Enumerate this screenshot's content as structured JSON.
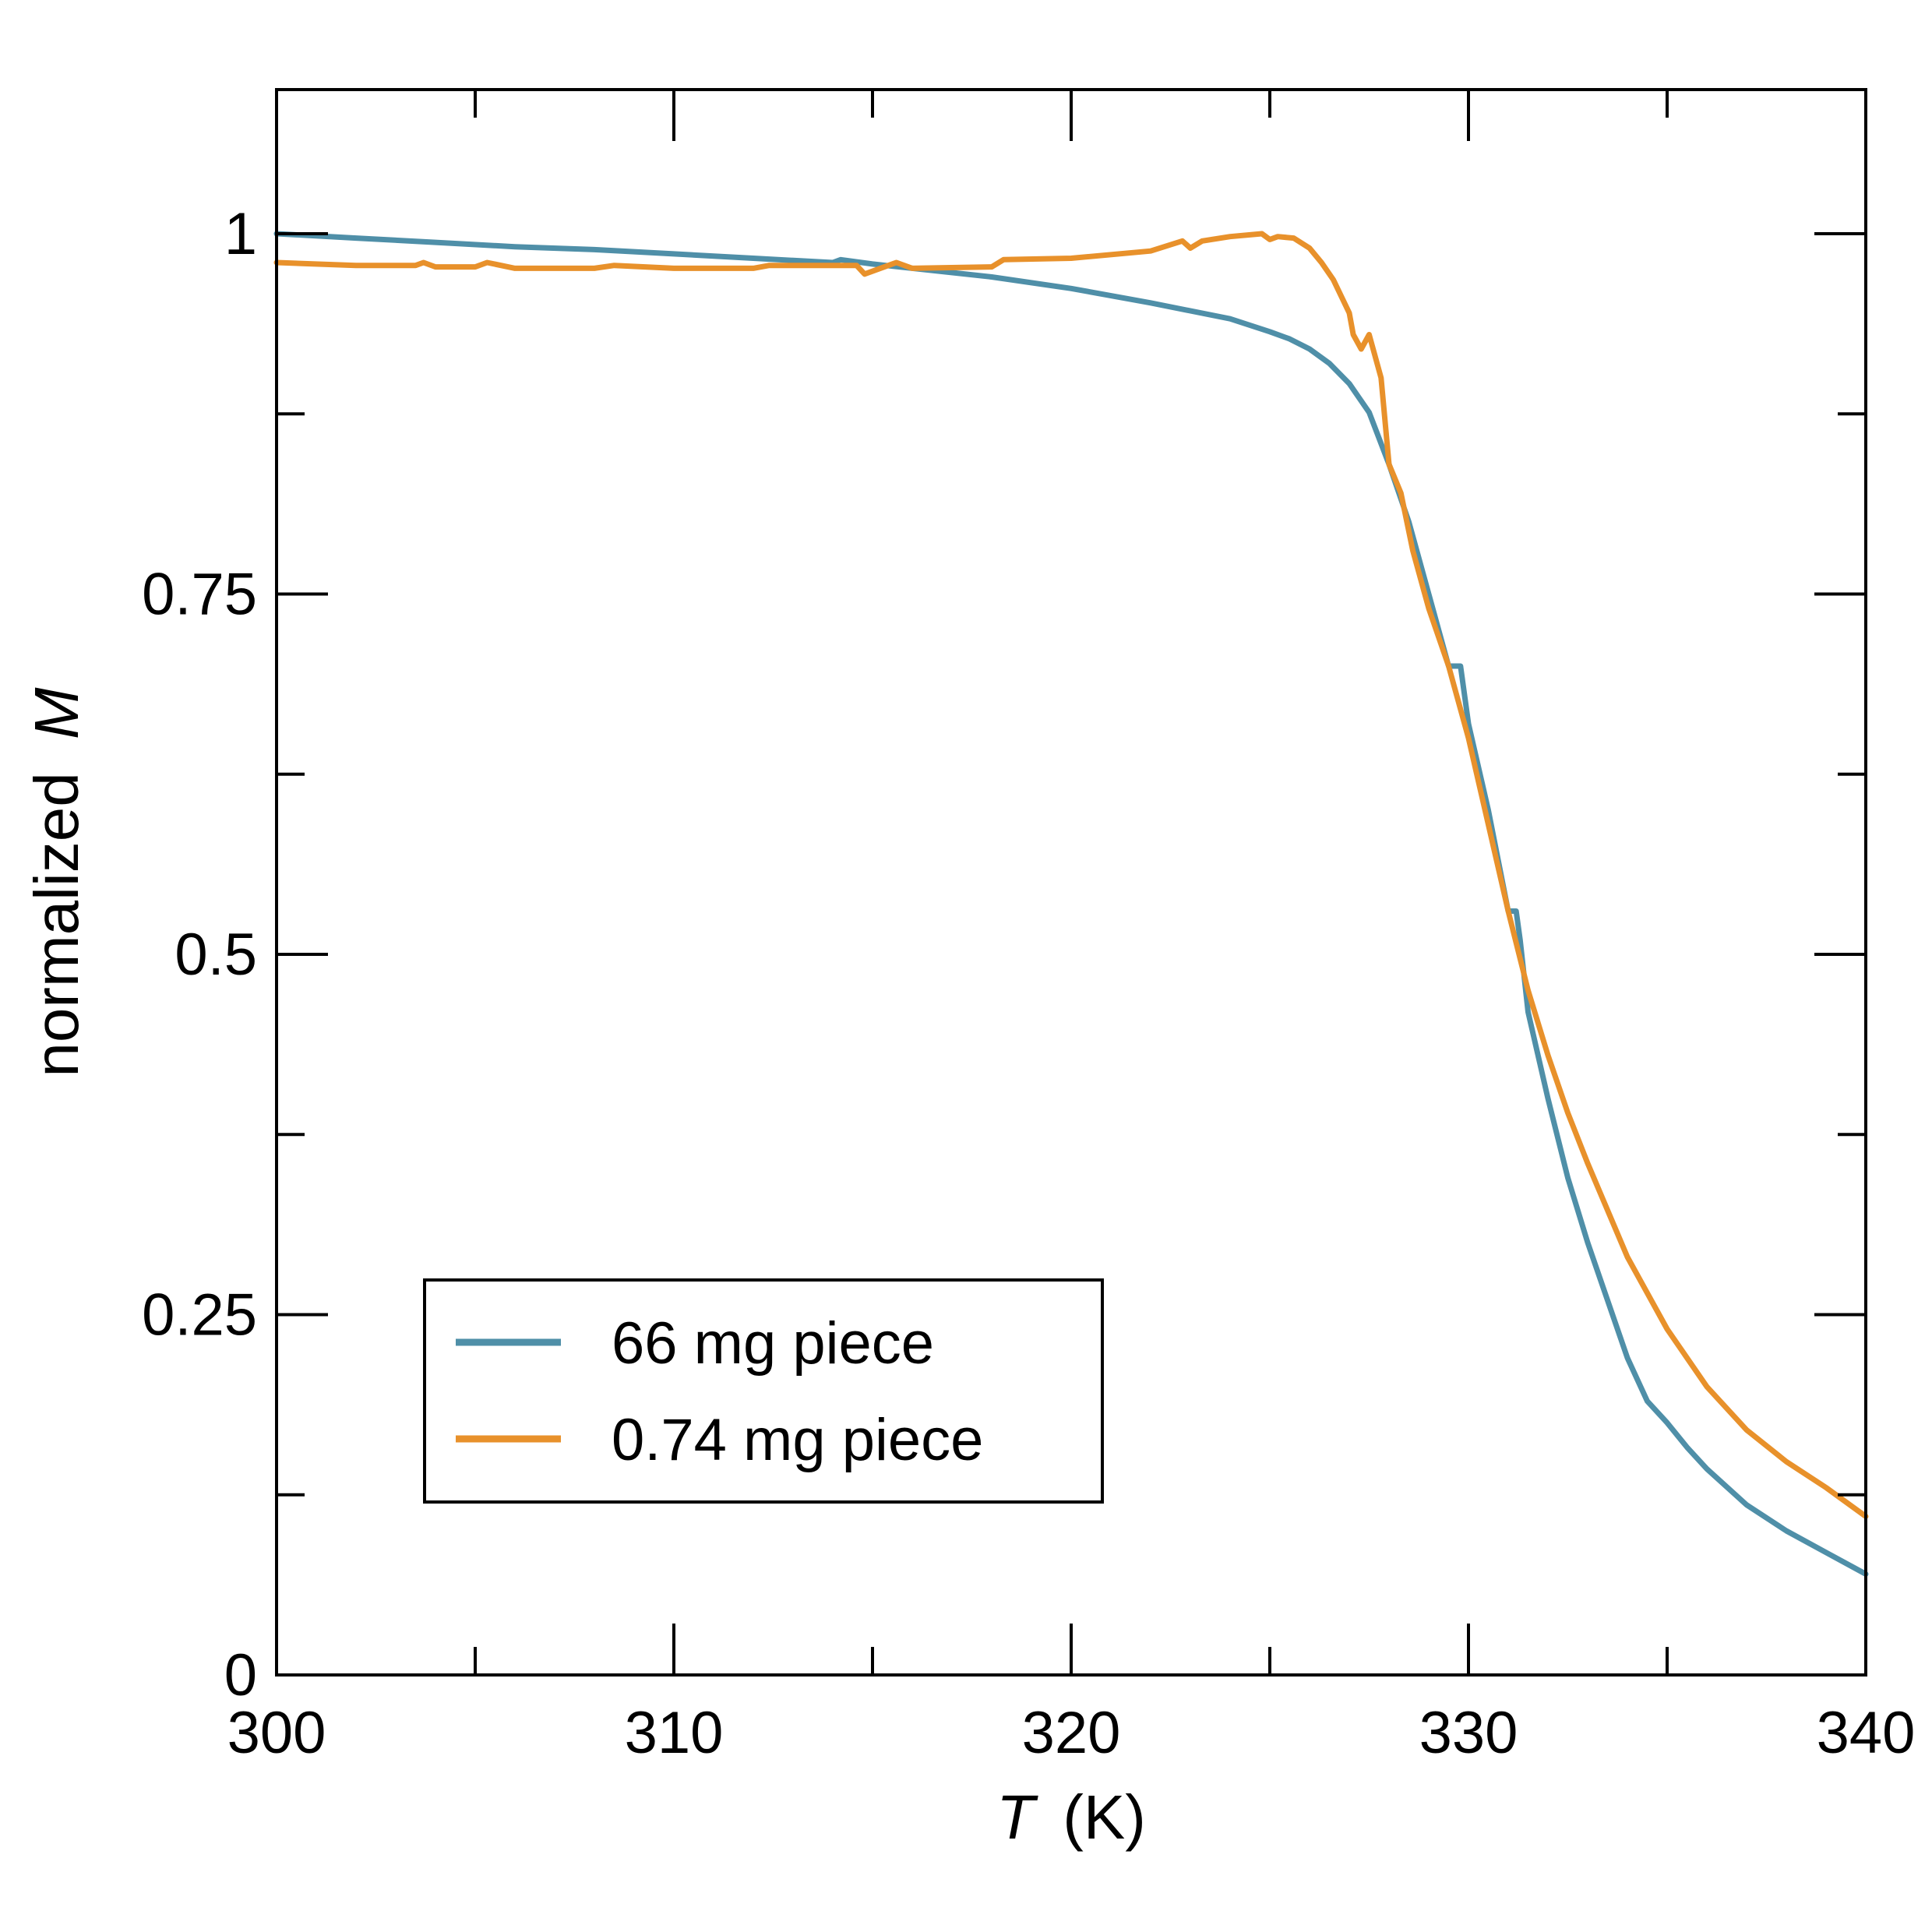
{
  "chart_data": {
    "type": "line",
    "title": "",
    "xlabel": "T (K)",
    "xlabel_var": "T",
    "xlabel_unit": "(K)",
    "ylabel": "normalized M",
    "ylabel_text": "normalized",
    "ylabel_var": "M",
    "xlim": [
      300,
      340
    ],
    "ylim": [
      0,
      1.1
    ],
    "xticks": [
      300,
      310,
      320,
      330,
      340
    ],
    "xtick_labels": [
      "300",
      "310",
      "320",
      "330",
      "340"
    ],
    "xminor": [
      305,
      315,
      325,
      335
    ],
    "yticks": [
      0,
      0.25,
      0.5,
      0.75,
      1
    ],
    "ytick_labels": [
      "0",
      "0.25",
      "0.5",
      "0.75",
      "1"
    ],
    "yminor": [
      0.125,
      0.375,
      0.625,
      0.875
    ],
    "grid": false,
    "legend_position": "bottom-left",
    "series": [
      {
        "name": "66 mg piece",
        "color": "#4f8fa8",
        "x": [
          300,
          302,
          304,
          306,
          308,
          310,
          312,
          314,
          314.2,
          315,
          316,
          318,
          320,
          322,
          324,
          325,
          325.5,
          326,
          326.5,
          327,
          327.5,
          328,
          328.5,
          329,
          329.5,
          329.6,
          329.8,
          330,
          330.5,
          331,
          331.2,
          331.3,
          331.5,
          332,
          332.5,
          333,
          333.5,
          334,
          334.5,
          335,
          335.5,
          336,
          337,
          338,
          339,
          340
        ],
        "y": [
          1.0,
          0.997,
          0.994,
          0.991,
          0.989,
          0.986,
          0.983,
          0.98,
          0.982,
          0.979,
          0.976,
          0.97,
          0.962,
          0.952,
          0.941,
          0.932,
          0.927,
          0.92,
          0.91,
          0.896,
          0.876,
          0.84,
          0.8,
          0.75,
          0.7,
          0.7,
          0.7,
          0.66,
          0.6,
          0.53,
          0.53,
          0.51,
          0.46,
          0.4,
          0.345,
          0.3,
          0.26,
          0.22,
          0.19,
          0.175,
          0.158,
          0.143,
          0.118,
          0.1,
          0.085,
          0.07
        ]
      },
      {
        "name": "0.74 mg piece",
        "color": "#e8912b",
        "x": [
          300,
          302,
          303.5,
          303.7,
          304,
          305,
          305.3,
          306,
          308,
          308.5,
          310,
          312,
          312.4,
          314,
          314.6,
          314.8,
          315.4,
          315.6,
          316,
          318,
          318.3,
          320,
          322,
          322.8,
          323,
          323.3,
          324,
          324.8,
          325,
          325.2,
          325.6,
          326,
          326.3,
          326.6,
          327,
          327.1,
          327.3,
          327.5,
          327.6,
          327.8,
          328,
          328.3,
          328.6,
          329,
          329.5,
          330,
          330.5,
          331,
          331.5,
          332,
          332.5,
          333,
          334,
          335,
          336,
          337,
          338,
          339,
          340
        ],
        "y": [
          0.98,
          0.978,
          0.978,
          0.98,
          0.977,
          0.977,
          0.98,
          0.976,
          0.976,
          0.978,
          0.976,
          0.976,
          0.978,
          0.978,
          0.978,
          0.972,
          0.978,
          0.98,
          0.976,
          0.977,
          0.982,
          0.983,
          0.988,
          0.995,
          0.99,
          0.995,
          0.998,
          1.0,
          0.996,
          0.998,
          0.997,
          0.99,
          0.98,
          0.968,
          0.945,
          0.93,
          0.92,
          0.93,
          0.92,
          0.9,
          0.84,
          0.82,
          0.78,
          0.74,
          0.7,
          0.65,
          0.59,
          0.53,
          0.475,
          0.43,
          0.39,
          0.355,
          0.29,
          0.24,
          0.2,
          0.17,
          0.148,
          0.13,
          0.11
        ]
      }
    ]
  }
}
